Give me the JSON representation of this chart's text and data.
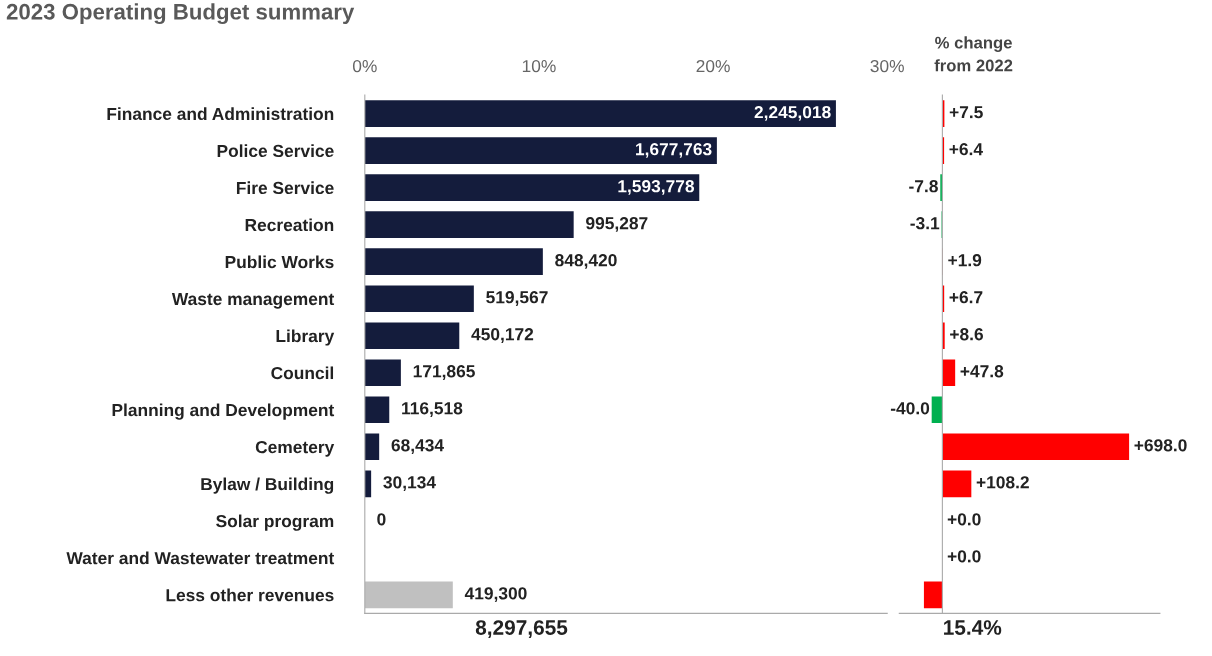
{
  "chart_data": [
    {
      "type": "bar",
      "orientation": "horizontal",
      "title": "2023 Operating Budget summary",
      "categories": [
        "Finance and Administration",
        "Police Service",
        "Fire Service",
        "Recreation",
        "Public Works",
        "Waste management",
        "Library",
        "Council",
        "Planning and Development",
        "Cemetery",
        "Bylaw / Building",
        "Solar program",
        "Water and Wastewater treatment",
        "Less other revenues"
      ],
      "values": [
        2245018,
        1677763,
        1593778,
        995287,
        848420,
        519567,
        450172,
        171865,
        116518,
        68434,
        30134,
        0,
        null,
        419300
      ],
      "colors": [
        "#141c3c",
        "#141c3c",
        "#141c3c",
        "#141c3c",
        "#141c3c",
        "#141c3c",
        "#141c3c",
        "#141c3c",
        "#141c3c",
        "#141c3c",
        "#141c3c",
        "#141c3c",
        "#141c3c",
        "#c0c0c0"
      ],
      "value_labels": [
        "2,245,018",
        "1,677,763",
        "1,593,778",
        "995,287",
        "848,420",
        "519,567",
        "450,172",
        "171,865",
        "116,518",
        "68,434",
        "30,134",
        "0",
        null,
        "419,300"
      ],
      "xlim": [
        0,
        2489296.5
      ],
      "x2lim": [
        0,
        30
      ],
      "x2ticks": [
        {
          "value": 0,
          "label": "0%"
        },
        {
          "value": 10,
          "label": "10%"
        },
        {
          "value": 20,
          "label": "20%"
        },
        {
          "value": 30,
          "label": "30%"
        }
      ],
      "annotations": [
        "8,297,655"
      ],
      "grid": false
    },
    {
      "type": "bar",
      "orientation": "horizontal",
      "title": "% change\nfrom 2022",
      "values": [
        7.5,
        6.4,
        -7.8,
        -3.1,
        1.9,
        6.7,
        8.6,
        47.8,
        -40.0,
        698.0,
        108.2,
        0.0,
        0.0,
        -69
      ],
      "colors": [
        "#ff0000",
        "#ff0000",
        "#00b050",
        "#00b050",
        "#ff0000",
        "#ff0000",
        "#ff0000",
        "#ff0000",
        "#00b050",
        "#ff0000",
        "#ff0000",
        "#ff0000",
        "#ff0000",
        "#ff0000"
      ],
      "value_labels": [
        "+7.5",
        "+6.4",
        "-7.8",
        "-3.1",
        "+1.9",
        "+6.7",
        "+8.6",
        "+47.8",
        "-40.0",
        "+698.0",
        "+108.2",
        "+0.0",
        "+0.0",
        null
      ],
      "annotations": [
        "15.4%"
      ],
      "grid": false
    }
  ]
}
